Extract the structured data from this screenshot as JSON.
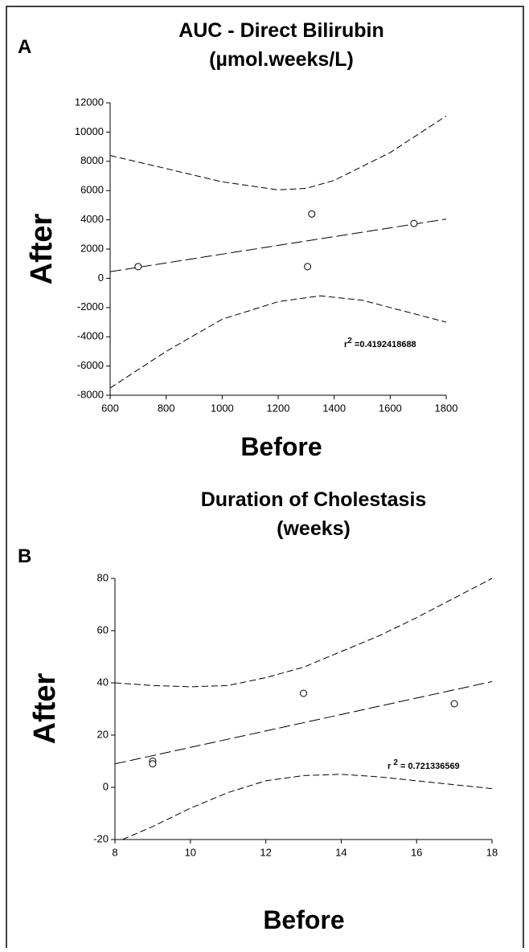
{
  "chart_data": [
    {
      "type": "scatter",
      "label": "A",
      "title": [
        "AUC - Direct Bilirubin",
        "(µmol.weeks/L)"
      ],
      "xlabel": "Before",
      "ylabel": "After",
      "xlim": [
        600,
        1800
      ],
      "xticks": [
        600,
        800,
        1000,
        1200,
        1400,
        1600,
        1800
      ],
      "ylim": [
        -8000,
        12000
      ],
      "yticks": [
        -8000,
        -6000,
        -4000,
        -2000,
        0,
        2000,
        4000,
        6000,
        8000,
        10000,
        12000
      ],
      "points": {
        "x": [
          700,
          1305,
          1320,
          1685
        ],
        "y": [
          800,
          800,
          4400,
          3750
        ]
      },
      "fit": {
        "x": [
          600,
          1800
        ],
        "y": [
          450,
          4050
        ]
      },
      "upper_band": {
        "x": [
          600,
          800,
          1000,
          1200,
          1300,
          1400,
          1600,
          1800
        ],
        "y": [
          8400,
          7500,
          6600,
          6050,
          6150,
          6700,
          8600,
          11100
        ]
      },
      "lower_band": {
        "x": [
          600,
          800,
          1000,
          1200,
          1350,
          1500,
          1600,
          1800
        ],
        "y": [
          -7500,
          -5000,
          -2800,
          -1600,
          -1200,
          -1500,
          -2000,
          -3000
        ]
      },
      "annotation": {
        "base": "r",
        "sup": "2",
        "text": " =0.4192418688"
      }
    },
    {
      "type": "scatter",
      "label": "B",
      "title": [
        "Duration of Cholestasis",
        "(weeks)"
      ],
      "xlabel": "Before",
      "ylabel": "After",
      "xlim": [
        8,
        18
      ],
      "xticks": [
        8,
        10,
        12,
        14,
        16,
        18
      ],
      "ylim": [
        -20,
        80
      ],
      "yticks": [
        -20,
        0,
        20,
        40,
        60,
        80
      ],
      "points": {
        "x": [
          9,
          9,
          13,
          17
        ],
        "y": [
          10,
          9,
          36,
          32
        ]
      },
      "fit": {
        "x": [
          8,
          18
        ],
        "y": [
          9,
          40.5
        ]
      },
      "upper_band": {
        "x": [
          8,
          9,
          10,
          11,
          12,
          13,
          14,
          15,
          16,
          17,
          18
        ],
        "y": [
          40,
          39,
          38.5,
          39,
          42,
          46,
          52,
          58,
          65,
          72.5,
          80
        ]
      },
      "lower_band": {
        "x": [
          8.2,
          9,
          10,
          11,
          12,
          13,
          14,
          15,
          16,
          17,
          18
        ],
        "y": [
          -20,
          -15,
          -8,
          -2,
          2.5,
          4.5,
          5,
          4,
          2.5,
          1,
          -0.5
        ]
      },
      "annotation": {
        "base": "r ",
        "sup": "2",
        "text": " = 0.721336569"
      }
    }
  ]
}
